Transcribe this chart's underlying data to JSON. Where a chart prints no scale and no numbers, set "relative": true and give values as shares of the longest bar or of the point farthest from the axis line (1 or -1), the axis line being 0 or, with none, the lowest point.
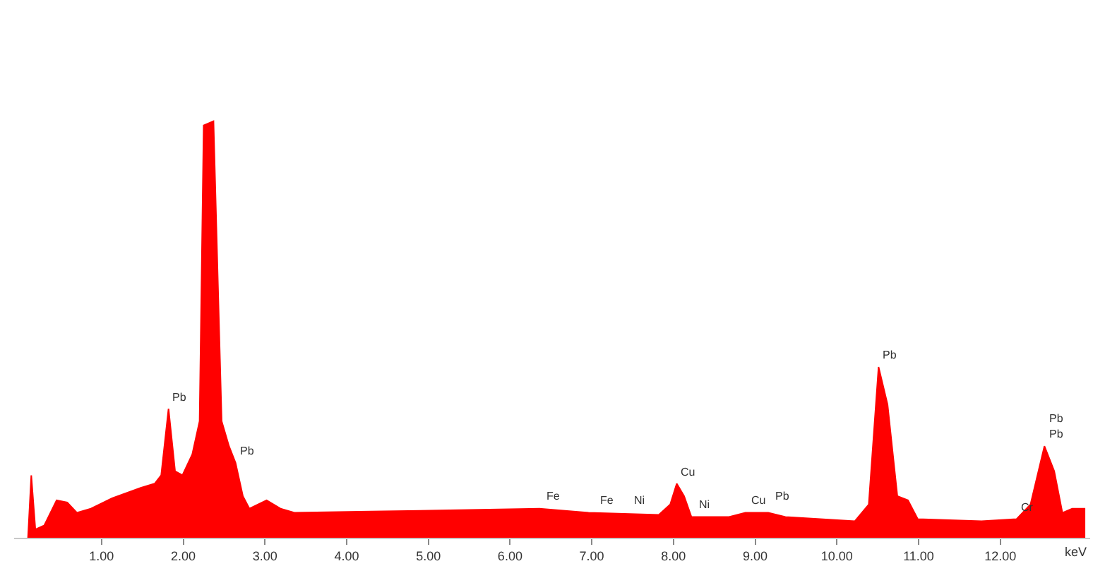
{
  "chart_data": {
    "type": "area",
    "relative": true,
    "xlabel": "keV",
    "x": [
      0.1,
      0.14,
      0.19,
      0.3,
      0.45,
      0.58,
      0.7,
      0.87,
      1.13,
      1.48,
      1.65,
      1.73,
      1.82,
      1.9,
      1.99,
      2.11,
      2.2,
      2.25,
      2.37,
      2.47,
      2.56,
      2.64,
      2.73,
      2.81,
      3.02,
      3.19,
      3.36,
      4.9,
      6.36,
      6.96,
      7.82,
      7.96,
      8.04,
      8.13,
      8.22,
      8.68,
      8.88,
      9.16,
      9.37,
      10.22,
      10.39,
      10.51,
      10.62,
      10.74,
      10.87,
      10.99,
      11.77,
      12.2,
      12.37,
      12.54,
      12.66,
      12.76,
      12.88,
      13.04
    ],
    "series": [
      {
        "color": "#ff0000",
        "values": [
          0,
          0.15,
          0.02,
          0.03,
          0.09,
          0.085,
          0.06,
          0.07,
          0.095,
          0.12,
          0.13,
          0.15,
          0.31,
          0.16,
          0.15,
          0.2,
          0.28,
          0.99,
          1.0,
          0.28,
          0.22,
          0.18,
          0.1,
          0.07,
          0.09,
          0.07,
          0.06,
          0.065,
          0.07,
          0.06,
          0.055,
          0.08,
          0.13,
          0.1,
          0.05,
          0.05,
          0.06,
          0.06,
          0.05,
          0.04,
          0.08,
          0.41,
          0.32,
          0.1,
          0.09,
          0.045,
          0.04,
          0.045,
          0.08,
          0.22,
          0.16,
          0.06,
          0.07,
          0.07
        ]
      }
    ],
    "xlim": [
      -0.07,
      13.1
    ],
    "xticks": [
      {
        "value": 1,
        "label": "1.00"
      },
      {
        "value": 2,
        "label": "2.00"
      },
      {
        "value": 3,
        "label": "3.00"
      },
      {
        "value": 4,
        "label": "4.00"
      },
      {
        "value": 5,
        "label": "5.00"
      },
      {
        "value": 6,
        "label": "6.00"
      },
      {
        "value": 7,
        "label": "7.00"
      },
      {
        "value": 8,
        "label": "8.00"
      },
      {
        "value": 9,
        "label": "9.00"
      },
      {
        "value": 10,
        "label": "10.00"
      },
      {
        "value": 11,
        "label": "11.00"
      },
      {
        "value": 12,
        "label": "12.00"
      }
    ],
    "annotations": [
      {
        "text": "Pb",
        "x": 1.82,
        "y": 0.31
      },
      {
        "text": "Pb",
        "x": 2.64,
        "y": 0.18
      },
      {
        "text": "Fe",
        "x": 6.4,
        "y": 0.07
      },
      {
        "text": "Fe",
        "x": 7.05,
        "y": 0.06
      },
      {
        "text": "Ni",
        "x": 7.47,
        "y": 0.06
      },
      {
        "text": "Cu",
        "x": 8.04,
        "y": 0.13
      },
      {
        "text": "Ni",
        "x": 8.26,
        "y": 0.05
      },
      {
        "text": "Cu",
        "x": 8.9,
        "y": 0.06
      },
      {
        "text": "Pb",
        "x": 9.2,
        "y": 0.07
      },
      {
        "text": "Pb",
        "x": 10.51,
        "y": 0.41
      },
      {
        "text": "Cr",
        "x": 12.2,
        "y": 0.045
      },
      {
        "text": "Pb",
        "x": 12.54,
        "y": 0.22
      },
      {
        "text": "Pb",
        "x": 12.54,
        "y": 0.22
      }
    ]
  }
}
